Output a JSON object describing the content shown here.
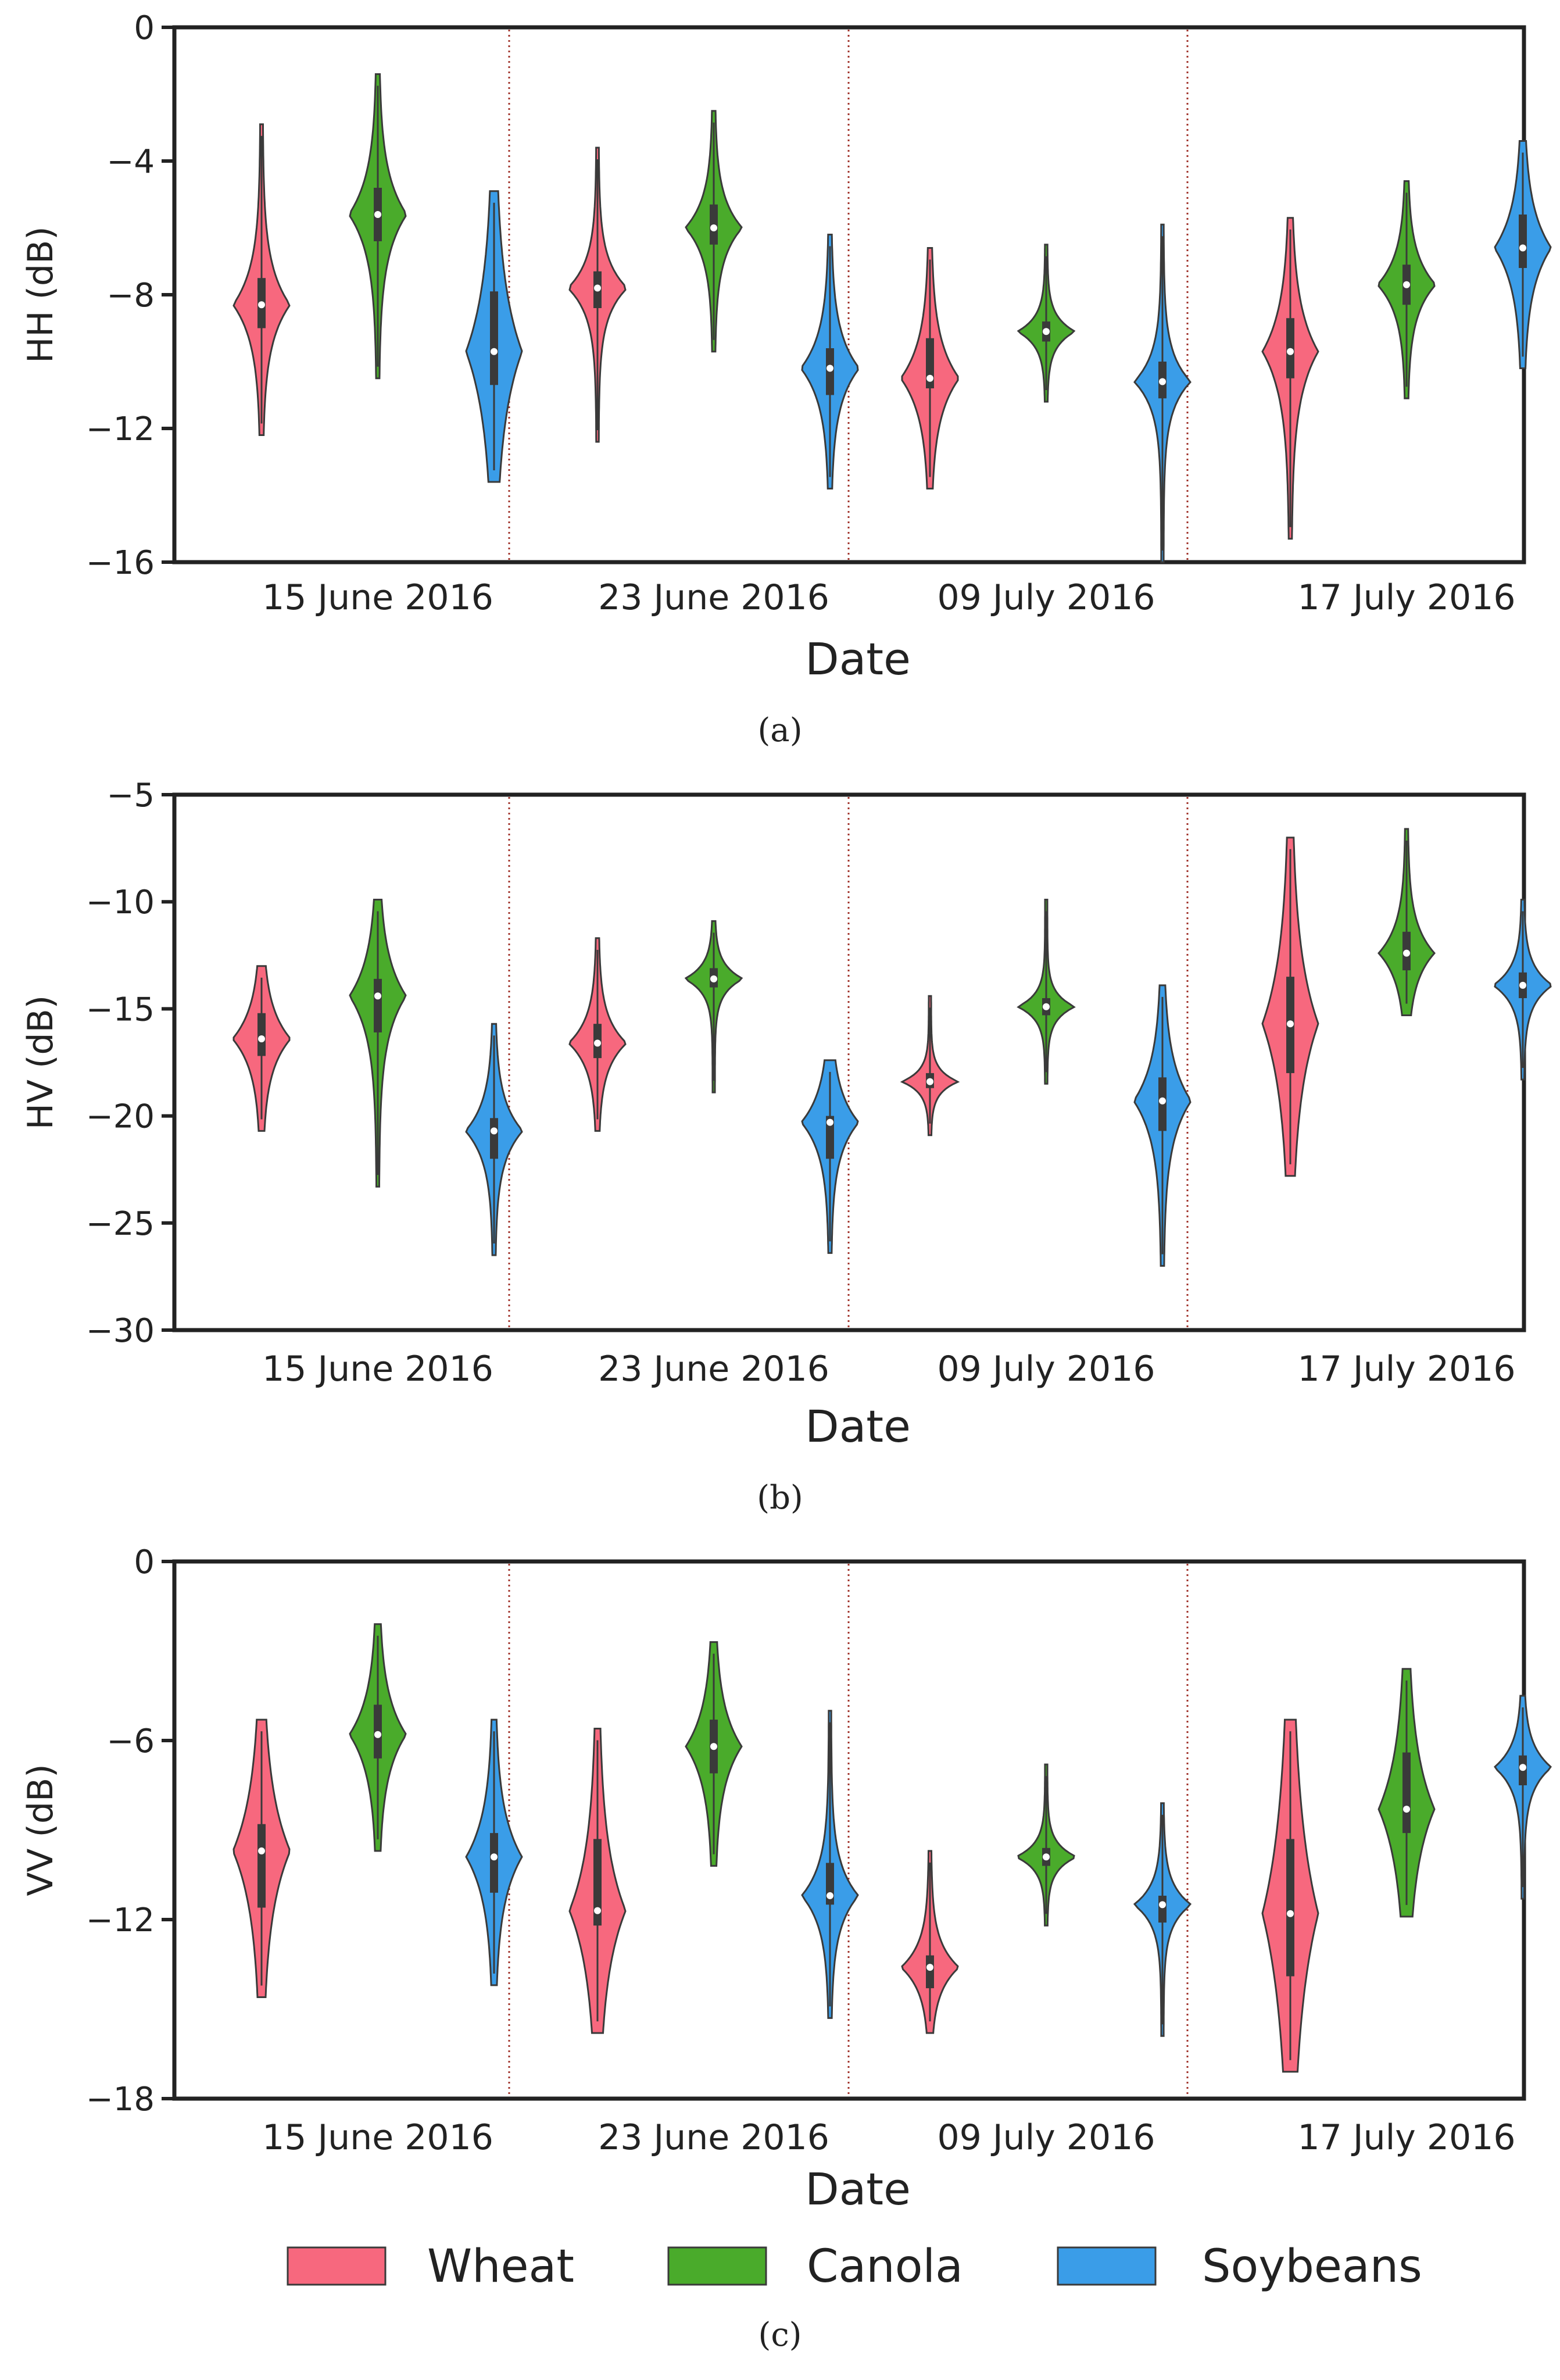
{
  "figure": {
    "legend": [
      {
        "label": "Wheat",
        "color": "#f7687e"
      },
      {
        "label": "Canola",
        "color": "#4aab2b"
      },
      {
        "label": "Soybeans",
        "color": "#3a9de8"
      }
    ]
  },
  "chart_data": [
    {
      "type": "violin",
      "panel_label": "(a)",
      "ylabel": "HH (dB)",
      "xlabel": "Date",
      "ylim": [
        -16,
        0
      ],
      "yticks": [
        "0",
        "−4",
        "−8",
        "−12",
        "−16"
      ],
      "categories": [
        "15  June 2016",
        "23 June 2016",
        "09 July 2016",
        "17 July 2016"
      ],
      "series": [
        {
          "name": "Wheat",
          "median": [
            -8.3,
            -7.8,
            -10.5,
            -9.7
          ],
          "q1": [
            -9.0,
            -8.4,
            -10.8,
            -10.5
          ],
          "q3": [
            -7.5,
            -7.3,
            -9.3,
            -8.7
          ],
          "min": [
            -12.2,
            -12.4,
            -13.8,
            -15.3
          ],
          "max": [
            -2.9,
            -3.6,
            -6.6,
            -5.7
          ]
        },
        {
          "name": "Canola",
          "median": [
            -5.6,
            -6.0,
            -9.1,
            -7.7
          ],
          "q1": [
            -6.4,
            -6.5,
            -9.4,
            -8.3
          ],
          "q3": [
            -4.8,
            -5.3,
            -8.8,
            -7.1
          ],
          "min": [
            -10.5,
            -9.7,
            -11.2,
            -11.1
          ],
          "max": [
            -1.4,
            -2.5,
            -6.5,
            -4.6
          ]
        },
        {
          "name": "Soybeans",
          "median": [
            -9.7,
            -10.2,
            -10.6,
            -6.6
          ],
          "q1": [
            -10.7,
            -11.0,
            -11.1,
            -7.2
          ],
          "q3": [
            -7.9,
            -9.6,
            -10.0,
            -5.6
          ],
          "min": [
            -13.6,
            -13.8,
            -16.0,
            -10.2
          ],
          "max": [
            -4.9,
            -6.2,
            -5.9,
            -3.4
          ]
        }
      ]
    },
    {
      "type": "violin",
      "panel_label": "(b)",
      "ylabel": "HV (dB)",
      "xlabel": "Date",
      "ylim": [
        -30,
        -5
      ],
      "yticks": [
        "−5",
        "−10",
        "−15",
        "−20",
        "−25",
        "−30"
      ],
      "categories": [
        "15  June 2016",
        "23 June 2016",
        "09 July 2016",
        "17 July 2016"
      ],
      "series": [
        {
          "name": "Wheat",
          "median": [
            -16.4,
            -16.6,
            -18.4,
            -15.7
          ],
          "q1": [
            -17.2,
            -17.3,
            -18.7,
            -18.0
          ],
          "q3": [
            -15.2,
            -15.7,
            -18.0,
            -13.5
          ],
          "min": [
            -20.7,
            -20.7,
            -20.9,
            -22.8
          ],
          "max": [
            -13.0,
            -11.7,
            -14.4,
            -7.0
          ]
        },
        {
          "name": "Canola",
          "median": [
            -14.4,
            -13.6,
            -14.9,
            -12.4
          ],
          "q1": [
            -16.1,
            -14.0,
            -15.3,
            -13.2
          ],
          "q3": [
            -13.6,
            -13.1,
            -14.5,
            -11.4
          ],
          "min": [
            -23.3,
            -18.9,
            -18.5,
            -15.3
          ],
          "max": [
            -9.9,
            -10.9,
            -9.9,
            -6.6
          ]
        },
        {
          "name": "Soybeans",
          "median": [
            -20.7,
            -20.3,
            -19.3,
            -13.9
          ],
          "q1": [
            -22.0,
            -22.0,
            -20.7,
            -14.5
          ],
          "q3": [
            -20.1,
            -20.0,
            -18.2,
            -13.3
          ],
          "min": [
            -26.5,
            -26.4,
            -27.0,
            -18.3
          ],
          "max": [
            -15.7,
            -17.4,
            -13.9,
            -9.9
          ]
        }
      ]
    },
    {
      "type": "violin",
      "panel_label": "(c)",
      "ylabel": "VV (dB)",
      "xlabel": "Date",
      "ylim": [
        -18,
        0
      ],
      "yticks": [
        "0",
        "−6",
        "−12",
        "−18"
      ],
      "categories": [
        "15 June 2016",
        "23 June 2016",
        "09 July 2016",
        "17 July 2016"
      ],
      "series": [
        {
          "name": "Wheat",
          "median": [
            -9.7,
            -11.7,
            -13.6,
            -11.8
          ],
          "q1": [
            -11.6,
            -12.2,
            -14.3,
            -13.9
          ],
          "q3": [
            -8.8,
            -9.3,
            -13.2,
            -9.3
          ],
          "min": [
            -14.6,
            -15.8,
            -15.8,
            -17.1
          ],
          "max": [
            -5.3,
            -5.6,
            -9.7,
            -5.3
          ]
        },
        {
          "name": "Canola",
          "median": [
            -5.8,
            -6.2,
            -9.9,
            -8.3
          ],
          "q1": [
            -6.6,
            -7.1,
            -10.2,
            -9.1
          ],
          "q3": [
            -4.8,
            -5.3,
            -9.6,
            -6.4
          ],
          "min": [
            -9.7,
            -10.2,
            -12.2,
            -11.9
          ],
          "max": [
            -2.1,
            -2.7,
            -6.8,
            -3.6
          ]
        },
        {
          "name": "Soybeans",
          "median": [
            -9.9,
            -11.2,
            -11.5,
            -6.9
          ],
          "q1": [
            -11.1,
            -11.5,
            -12.1,
            -7.5
          ],
          "q3": [
            -9.1,
            -10.1,
            -11.2,
            -6.5
          ],
          "min": [
            -14.2,
            -15.3,
            -15.9,
            -11.3
          ],
          "max": [
            -5.3,
            -5.0,
            -8.1,
            -4.5
          ]
        }
      ]
    }
  ]
}
